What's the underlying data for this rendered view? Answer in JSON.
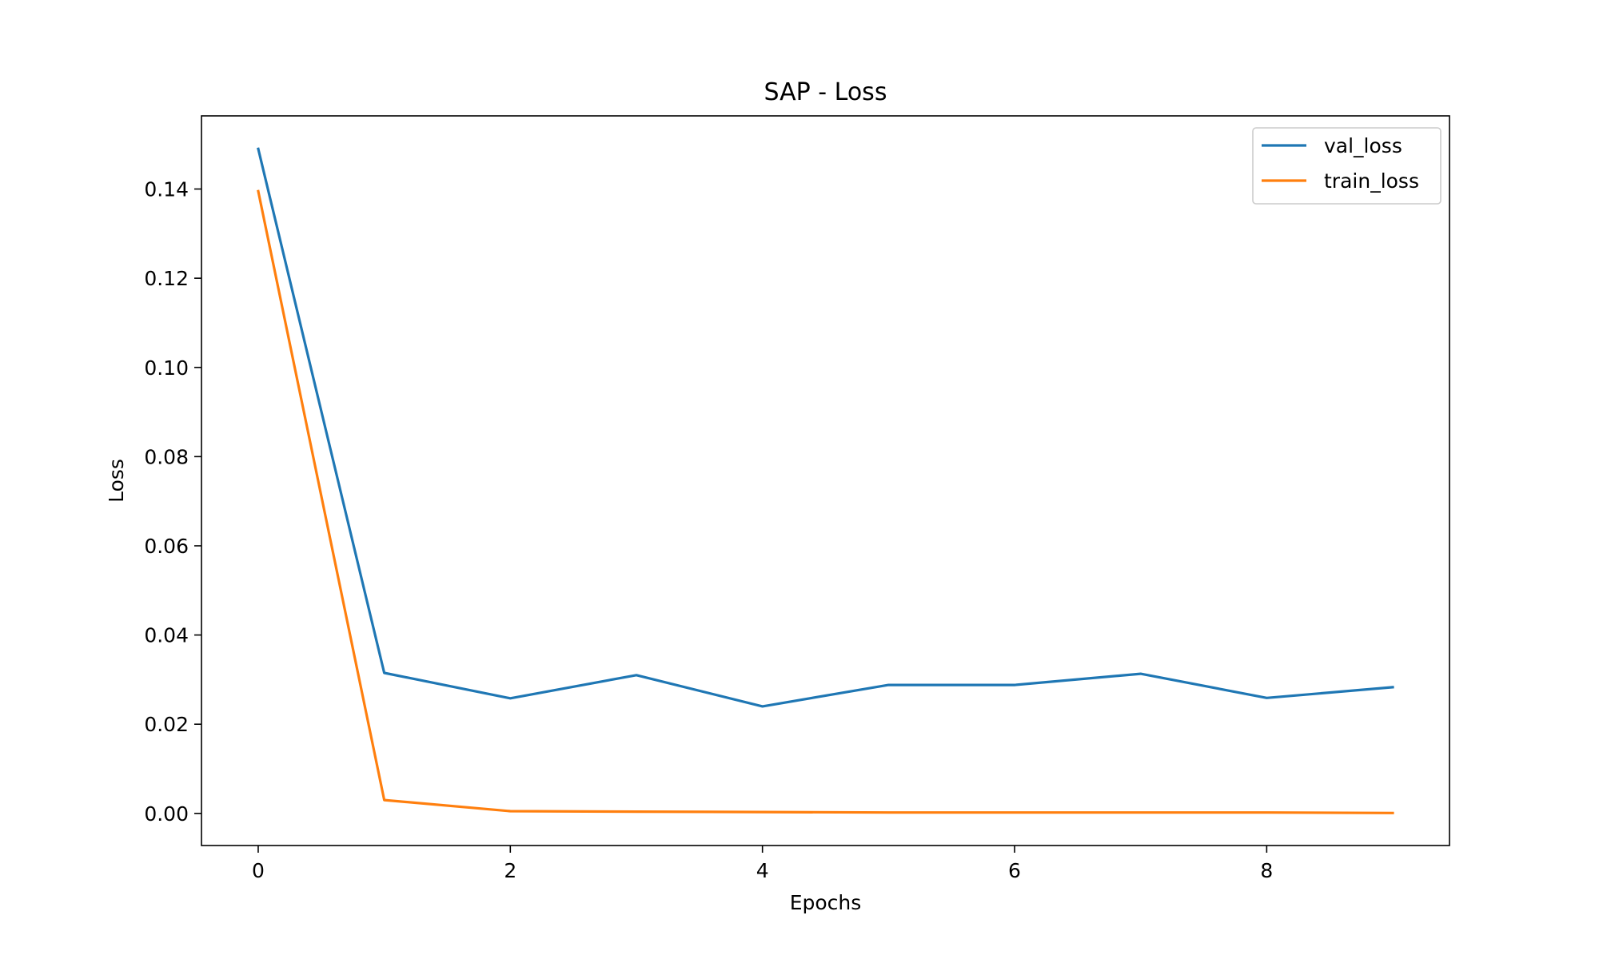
{
  "chart_data": {
    "type": "line",
    "title": "SAP - Loss",
    "xlabel": "Epochs",
    "ylabel": "Loss",
    "x": [
      0,
      1,
      2,
      3,
      4,
      5,
      6,
      7,
      8,
      9
    ],
    "series": [
      {
        "name": "val_loss",
        "color": "#1f77b4",
        "values": [
          0.149,
          0.0315,
          0.0258,
          0.031,
          0.024,
          0.0288,
          0.0288,
          0.0313,
          0.0259,
          0.0283
        ]
      },
      {
        "name": "train_loss",
        "color": "#ff7f0e",
        "values": [
          0.1395,
          0.003,
          0.0005,
          0.0004,
          0.0003,
          0.0002,
          0.0002,
          0.0002,
          0.0002,
          0.0001
        ]
      }
    ],
    "xlim": [
      -0.45,
      9.45
    ],
    "ylim": [
      -0.0072,
      0.1564
    ],
    "xticks": [
      0,
      2,
      4,
      6,
      8
    ],
    "xtick_labels": [
      "0",
      "2",
      "4",
      "6",
      "8"
    ],
    "yticks": [
      0,
      0.02,
      0.04,
      0.06,
      0.08,
      0.1,
      0.12,
      0.14
    ],
    "ytick_labels": [
      "0.00",
      "0.02",
      "0.04",
      "0.06",
      "0.08",
      "0.10",
      "0.12",
      "0.14"
    ],
    "grid": false,
    "legend_position": "top-right"
  }
}
